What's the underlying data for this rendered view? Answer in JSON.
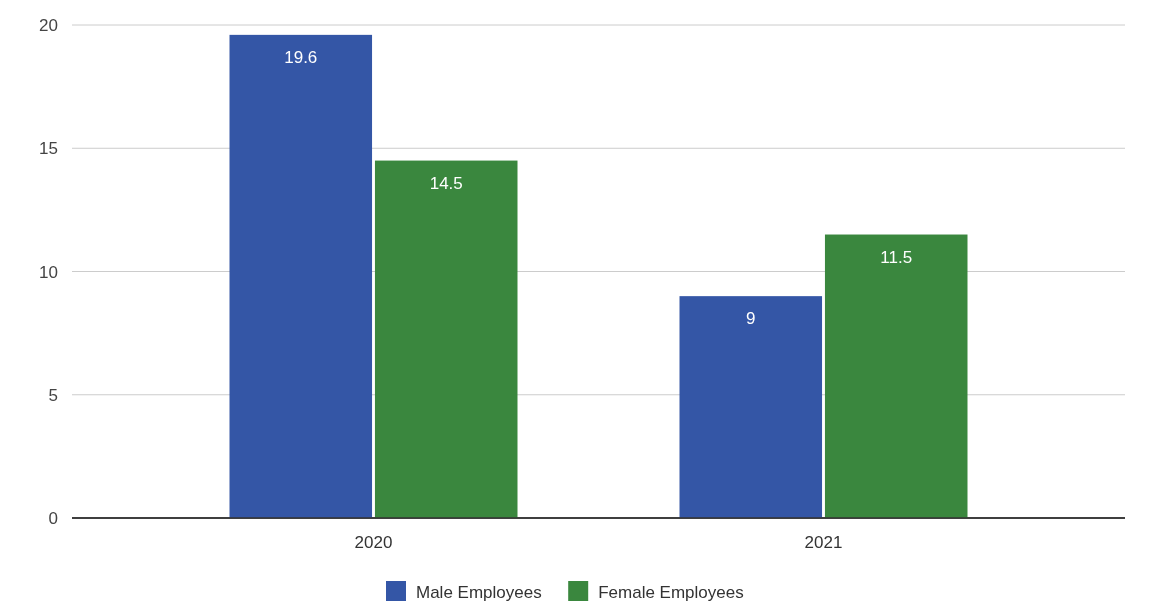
{
  "chart_data": {
    "type": "bar",
    "categories": [
      "2020",
      "2021"
    ],
    "series": [
      {
        "name": "Male Employees",
        "color": "#3456a6",
        "values": [
          19.6,
          9
        ]
      },
      {
        "name": "Female Employees",
        "color": "#3a873e",
        "values": [
          14.5,
          11.5
        ]
      }
    ],
    "ylim": [
      0,
      20
    ],
    "yticks": [
      0,
      5,
      10,
      15,
      20
    ],
    "grid": "y",
    "legend": "bottom",
    "data_labels": true
  }
}
